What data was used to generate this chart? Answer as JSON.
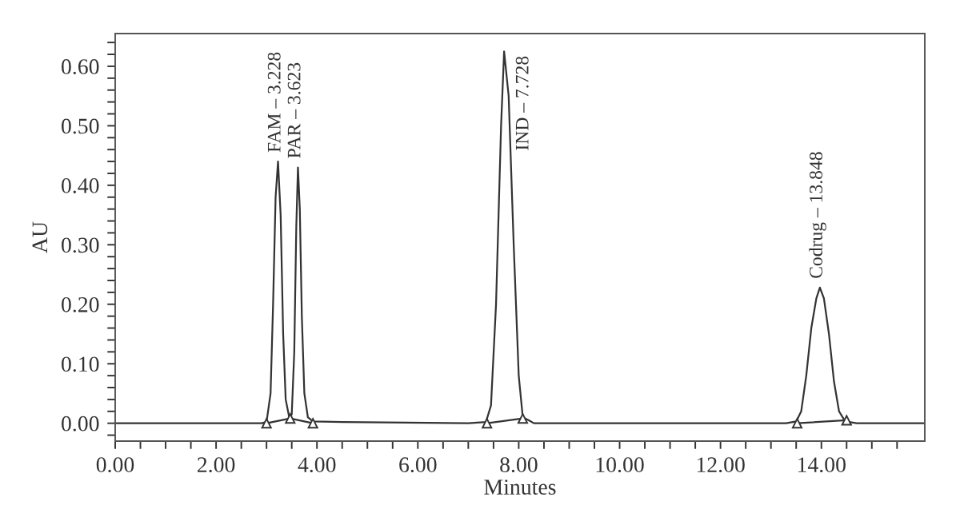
{
  "chart_data": {
    "type": "line",
    "xlabel": "Minutes",
    "ylabel": "AU",
    "xlim": [
      0,
      16.05
    ],
    "ylim": [
      -0.03,
      0.655
    ],
    "xticks": [
      {
        "value": 0,
        "label": "0.00"
      },
      {
        "value": 0.5,
        "label": null
      },
      {
        "value": 1,
        "label": null
      },
      {
        "value": 1.5,
        "label": null
      },
      {
        "value": 2,
        "label": "2.00"
      },
      {
        "value": 2.5,
        "label": null
      },
      {
        "value": 3,
        "label": null
      },
      {
        "value": 3.5,
        "label": null
      },
      {
        "value": 4,
        "label": "4.00"
      },
      {
        "value": 4.5,
        "label": null
      },
      {
        "value": 5,
        "label": null
      },
      {
        "value": 5.5,
        "label": null
      },
      {
        "value": 6,
        "label": "6.00"
      },
      {
        "value": 6.5,
        "label": null
      },
      {
        "value": 7,
        "label": null
      },
      {
        "value": 7.5,
        "label": null
      },
      {
        "value": 8,
        "label": "8.00"
      },
      {
        "value": 8.5,
        "label": null
      },
      {
        "value": 9,
        "label": null
      },
      {
        "value": 9.5,
        "label": null
      },
      {
        "value": 10,
        "label": "10.00"
      },
      {
        "value": 10.5,
        "label": null
      },
      {
        "value": 11,
        "label": null
      },
      {
        "value": 11.5,
        "label": null
      },
      {
        "value": 12,
        "label": "12.00"
      },
      {
        "value": 12.5,
        "label": null
      },
      {
        "value": 13,
        "label": null
      },
      {
        "value": 13.5,
        "label": null
      },
      {
        "value": 14,
        "label": "14.00"
      },
      {
        "value": 14.5,
        "label": null
      },
      {
        "value": 15,
        "label": null
      },
      {
        "value": 15.5,
        "label": null
      }
    ],
    "yticks": [
      {
        "value": -0.02,
        "label": null
      },
      {
        "value": 0,
        "label": "0.00"
      },
      {
        "value": 0.02,
        "label": null
      },
      {
        "value": 0.04,
        "label": null
      },
      {
        "value": 0.06,
        "label": null
      },
      {
        "value": 0.08,
        "label": null
      },
      {
        "value": 0.1,
        "label": "0.10"
      },
      {
        "value": 0.12,
        "label": null
      },
      {
        "value": 0.14,
        "label": null
      },
      {
        "value": 0.16,
        "label": null
      },
      {
        "value": 0.18,
        "label": null
      },
      {
        "value": 0.2,
        "label": "0.20"
      },
      {
        "value": 0.22,
        "label": null
      },
      {
        "value": 0.24,
        "label": null
      },
      {
        "value": 0.26,
        "label": null
      },
      {
        "value": 0.28,
        "label": null
      },
      {
        "value": 0.3,
        "label": "0.30"
      },
      {
        "value": 0.32,
        "label": null
      },
      {
        "value": 0.34,
        "label": null
      },
      {
        "value": 0.36,
        "label": null
      },
      {
        "value": 0.38,
        "label": null
      },
      {
        "value": 0.4,
        "label": "0.40"
      },
      {
        "value": 0.42,
        "label": null
      },
      {
        "value": 0.44,
        "label": null
      },
      {
        "value": 0.46,
        "label": null
      },
      {
        "value": 0.48,
        "label": null
      },
      {
        "value": 0.5,
        "label": "0.50"
      },
      {
        "value": 0.52,
        "label": null
      },
      {
        "value": 0.54,
        "label": null
      },
      {
        "value": 0.56,
        "label": null
      },
      {
        "value": 0.58,
        "label": null
      },
      {
        "value": 0.6,
        "label": "0.60"
      },
      {
        "value": 0.62,
        "label": null
      },
      {
        "value": 0.64,
        "label": null
      }
    ],
    "grid": false,
    "legend": false,
    "series": [
      {
        "color": "#333333",
        "marker": "none",
        "line_style": "solid",
        "x": [
          0,
          2.9,
          3.0,
          3.08,
          3.13,
          3.18,
          3.228,
          3.28,
          3.33,
          3.38,
          3.45,
          3.5,
          3.55,
          3.59,
          3.623,
          3.66,
          3.7,
          3.75,
          3.82,
          3.92,
          4.5,
          7.0,
          7.35,
          7.45,
          7.55,
          7.65,
          7.71,
          7.8,
          7.9,
          8.0,
          8.08,
          8.2,
          8.3,
          13.3,
          13.5,
          13.6,
          13.7,
          13.8,
          13.9,
          13.97,
          14.05,
          14.15,
          14.25,
          14.35,
          14.45,
          14.55,
          14.7,
          16.05
        ],
        "values": [
          0,
          0,
          0.002,
          0.05,
          0.2,
          0.38,
          0.44,
          0.35,
          0.15,
          0.04,
          0.01,
          0.015,
          0.12,
          0.33,
          0.43,
          0.36,
          0.18,
          0.05,
          0.01,
          0.003,
          0.002,
          0,
          0.002,
          0.03,
          0.2,
          0.5,
          0.625,
          0.55,
          0.3,
          0.08,
          0.01,
          0.005,
          0,
          0,
          0.003,
          0.02,
          0.08,
          0.16,
          0.21,
          0.228,
          0.21,
          0.15,
          0.07,
          0.02,
          0.006,
          0.002,
          0,
          0
        ]
      },
      {
        "type": "line",
        "color": "#333333",
        "marker": "triangle",
        "line_style": "solid",
        "x": [
          3.0,
          3.47,
          3.92,
          null,
          7.37,
          8.08,
          null,
          13.52,
          14.5
        ],
        "values": [
          0,
          0.008,
          0,
          null,
          0,
          0.008,
          null,
          0,
          0.005
        ]
      }
    ],
    "annotations": [
      {
        "text": "FAM – 3.228",
        "x": 3.228,
        "y": 0.44
      },
      {
        "text": "PAR – 3.623",
        "x": 3.623,
        "y": 0.43
      },
      {
        "text": "IND – 7.728",
        "x": 7.71,
        "y": 0.625
      },
      {
        "text": "Codrug – 13.848",
        "x": 13.97,
        "y": 0.228
      }
    ]
  }
}
